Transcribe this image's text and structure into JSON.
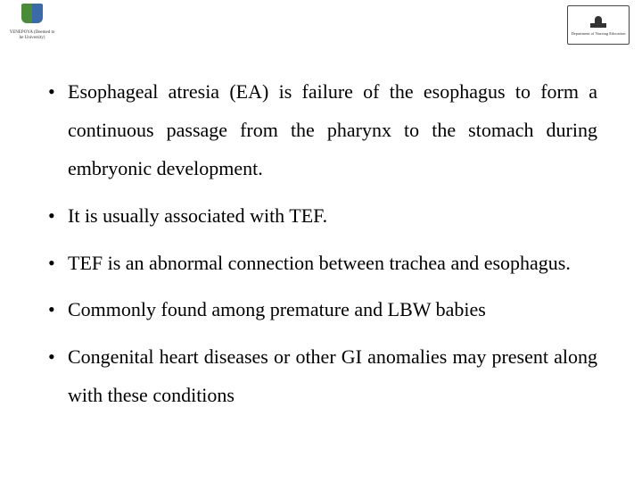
{
  "header": {
    "logo_left_caption": "YENEPOYA\n(Deemed to be University)",
    "logo_left_colors": {
      "left": "#4a8b3a",
      "right": "#3a6aa8"
    },
    "logo_right_caption": "Department of\nNursing Education",
    "logo_right_border": "#444444"
  },
  "content": {
    "bullets": [
      "Esophageal atresia (EA) is failure of the esophagus to form a continuous passage  from the pharynx to the stomach during embryonic development.",
      "It is usually associated with TEF.",
      "TEF is an abnormal connection between trachea and esophagus.",
      "Commonly found among premature and LBW babies",
      "Congenital heart diseases or other GI anomalies may present along with these conditions"
    ]
  },
  "style": {
    "font_family": "Times New Roman",
    "font_size_pt": 22,
    "text_color": "#000000",
    "background_color": "#ffffff",
    "line_height": 1.95,
    "text_align": "justify"
  }
}
